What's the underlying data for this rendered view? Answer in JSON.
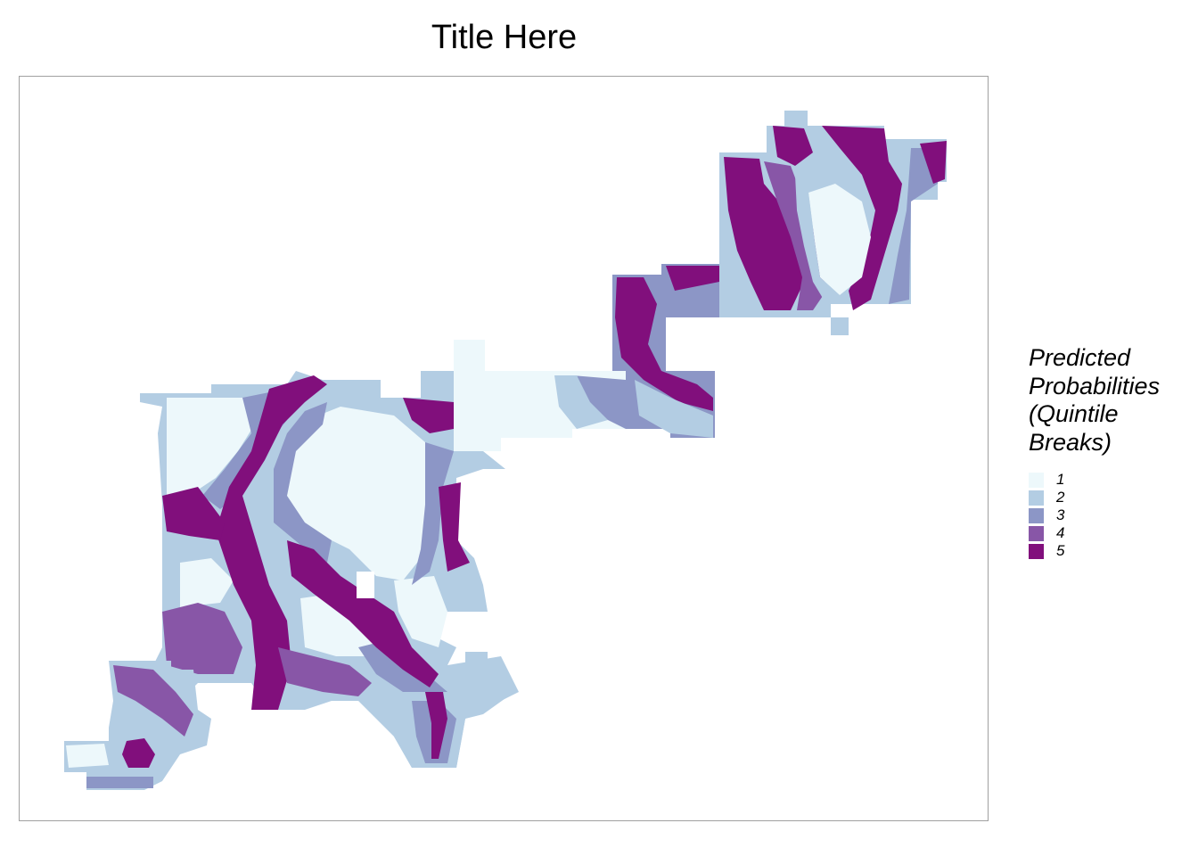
{
  "title": "Title Here",
  "legend": {
    "title_lines": [
      "Predicted",
      "Probabilities",
      "(Quintile",
      "Breaks)"
    ],
    "classes": [
      {
        "label": "1",
        "color": "#edf8fb"
      },
      {
        "label": "2",
        "color": "#b3cde3"
      },
      {
        "label": "3",
        "color": "#8c96c6"
      },
      {
        "label": "4",
        "color": "#8856a7"
      },
      {
        "label": "5",
        "color": "#810f7c"
      }
    ]
  }
}
